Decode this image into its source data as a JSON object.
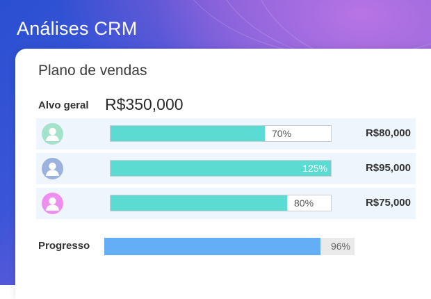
{
  "header": {
    "title": "Análises CRM"
  },
  "card": {
    "title": "Plano de vendas",
    "goal_label": "Alvo geral",
    "goal_value": "R$350,000"
  },
  "rows": [
    {
      "avatar_icon": "user-icon",
      "avatar_color": "#a4e3cb",
      "progress_pct": 70,
      "pct_label": "70%",
      "amount": "R$80,000"
    },
    {
      "avatar_icon": "user-icon",
      "avatar_color": "#9bb1de",
      "progress_pct": 125,
      "pct_label": "125%",
      "amount": "R$95,000"
    },
    {
      "avatar_icon": "user-icon",
      "avatar_color": "#ee8ff0",
      "progress_pct": 80,
      "pct_label": "80%",
      "amount": "R$75,000"
    }
  ],
  "progress": {
    "label": "Progresso",
    "value_pct": 96,
    "pct_label": "96%"
  },
  "colors": {
    "bar_fill": "#5cdbd2",
    "progress_fill": "#63aef5",
    "row_bg": "#eef5fd"
  }
}
